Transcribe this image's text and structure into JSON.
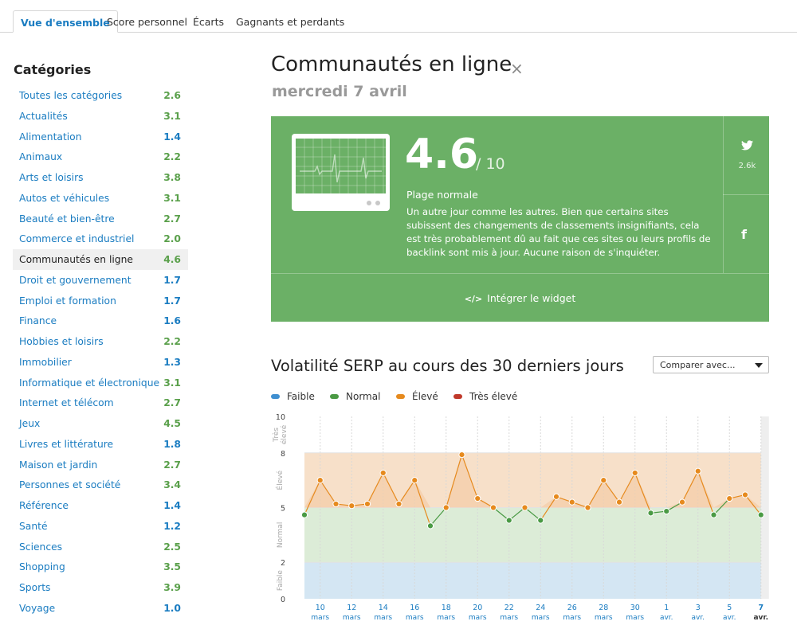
{
  "tabs": [
    {
      "label": "Vue d'ensemble"
    },
    {
      "label": "Score personnel"
    },
    {
      "label": "Écarts"
    },
    {
      "label": "Gagnants et perdants"
    }
  ],
  "sidebar": {
    "title": "Catégories",
    "items": [
      {
        "label": "Toutes les catégories",
        "score": "2.6"
      },
      {
        "label": "Actualités",
        "score": "3.1"
      },
      {
        "label": "Alimentation",
        "score": "1.4"
      },
      {
        "label": "Animaux",
        "score": "2.2"
      },
      {
        "label": "Arts et loisirs",
        "score": "3.8"
      },
      {
        "label": "Autos et véhicules",
        "score": "3.1"
      },
      {
        "label": "Beauté et bien-être",
        "score": "2.7"
      },
      {
        "label": "Commerce et industriel",
        "score": "2.0"
      },
      {
        "label": "Communautés en ligne",
        "score": "4.6"
      },
      {
        "label": "Droit et gouvernement",
        "score": "1.7"
      },
      {
        "label": "Emploi et formation",
        "score": "1.7"
      },
      {
        "label": "Finance",
        "score": "1.6"
      },
      {
        "label": "Hobbies et loisirs",
        "score": "2.2"
      },
      {
        "label": "Immobilier",
        "score": "1.3"
      },
      {
        "label": "Informatique et électronique",
        "score": "3.1"
      },
      {
        "label": "Internet et télécom",
        "score": "2.7"
      },
      {
        "label": "Jeux",
        "score": "4.5"
      },
      {
        "label": "Livres et littérature",
        "score": "1.8"
      },
      {
        "label": "Maison et jardin",
        "score": "2.7"
      },
      {
        "label": "Personnes et société",
        "score": "3.4"
      },
      {
        "label": "Référence",
        "score": "1.4"
      },
      {
        "label": "Santé",
        "score": "1.2"
      },
      {
        "label": "Sciences",
        "score": "2.5"
      },
      {
        "label": "Shopping",
        "score": "3.5"
      },
      {
        "label": "Sports",
        "score": "3.9"
      },
      {
        "label": "Voyage",
        "score": "1.0"
      }
    ]
  },
  "main": {
    "title": "Communautés en ligne",
    "close": "×",
    "date": "mercredi 7 avril"
  },
  "widget": {
    "score": "4.6",
    "max": "/ 10",
    "range_label": "Plage normale",
    "description": "Un autre jour comme les autres. Bien que certains sites subissent des changements de classements insignifiants, cela est très probablement dû au fait que ces sites ou leurs profils de backlink sont mis à jour. Aucune raison de s'inquiéter.",
    "twitter_count": "2.6k",
    "embed_label": "Intégrer le widget",
    "embed_icon": "</>",
    "facebook_icon": "f",
    "colors": {
      "background": "#6bb066"
    }
  },
  "chart": {
    "title": "Volatilité SERP au cours des 30 derniers jours",
    "compare_label": "Comparer avec...",
    "legend": [
      {
        "label": "Faible",
        "color": "#3f8fd0"
      },
      {
        "label": "Normal",
        "color": "#4a9a44"
      },
      {
        "label": "Élevé",
        "color": "#e68a1e"
      },
      {
        "label": "Très élevé",
        "color": "#c0392b"
      }
    ]
  },
  "chart_data": {
    "type": "line",
    "ylim": [
      0,
      10
    ],
    "yticks": [
      0,
      2,
      5,
      8,
      10
    ],
    "bands": [
      {
        "label": "Faible",
        "from": 0,
        "to": 2,
        "color": "#d4e6f3"
      },
      {
        "label": "Normal",
        "from": 2,
        "to": 5,
        "color": "#dcecd7"
      },
      {
        "label": "Élevé",
        "from": 5,
        "to": 8,
        "color": "#f7e0c9"
      },
      {
        "label": "Très élevé",
        "from": 8,
        "to": 10,
        "color": "#ffffff"
      }
    ],
    "x_labels": [
      {
        "day": "10",
        "month": "mars"
      },
      {
        "day": "12",
        "month": "mars"
      },
      {
        "day": "14",
        "month": "mars"
      },
      {
        "day": "16",
        "month": "mars"
      },
      {
        "day": "18",
        "month": "mars"
      },
      {
        "day": "20",
        "month": "mars"
      },
      {
        "day": "22",
        "month": "mars"
      },
      {
        "day": "24",
        "month": "mars"
      },
      {
        "day": "26",
        "month": "mars"
      },
      {
        "day": "28",
        "month": "mars"
      },
      {
        "day": "30",
        "month": "mars"
      },
      {
        "day": "1",
        "month": "avr."
      },
      {
        "day": "3",
        "month": "avr."
      },
      {
        "day": "5",
        "month": "avr."
      },
      {
        "day": "7",
        "month": "avr."
      }
    ],
    "values": [
      4.6,
      6.5,
      5.2,
      5.1,
      5.2,
      6.9,
      5.2,
      6.5,
      4.0,
      5.0,
      7.9,
      5.5,
      5.0,
      4.3,
      5.0,
      4.3,
      5.6,
      5.3,
      5.0,
      6.5,
      5.3,
      6.9,
      4.7,
      4.8,
      5.3,
      7.0,
      4.6,
      5.5,
      5.7,
      4.6
    ],
    "level_colors": {
      "normal": "#4a9a44",
      "eleve": "#e68a1e"
    }
  }
}
